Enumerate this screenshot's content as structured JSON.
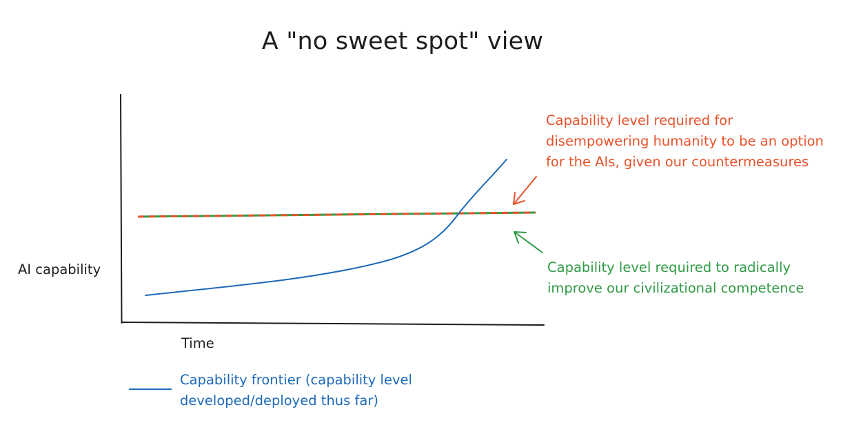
{
  "title": "A \"no sweet spot\" view",
  "axes": {
    "y_label": "AI capability",
    "x_label": "Time"
  },
  "annotations": {
    "disempower": {
      "lines": [
        "Capability level required for",
        "disempowering humanity to be an option",
        "for the AIs, given our countermeasures"
      ]
    },
    "competence": {
      "lines": [
        "Capability level required to radically",
        "improve our civilizational competence"
      ]
    }
  },
  "legend": {
    "lines": [
      "Capability frontier (capability level",
      "developed/deployed thus far)"
    ]
  },
  "colors": {
    "frontier": "#1d69b8",
    "disempower_threshold": "#e8522a",
    "competence_threshold": "#2f9a45",
    "axis": "#1e1e1e"
  }
}
